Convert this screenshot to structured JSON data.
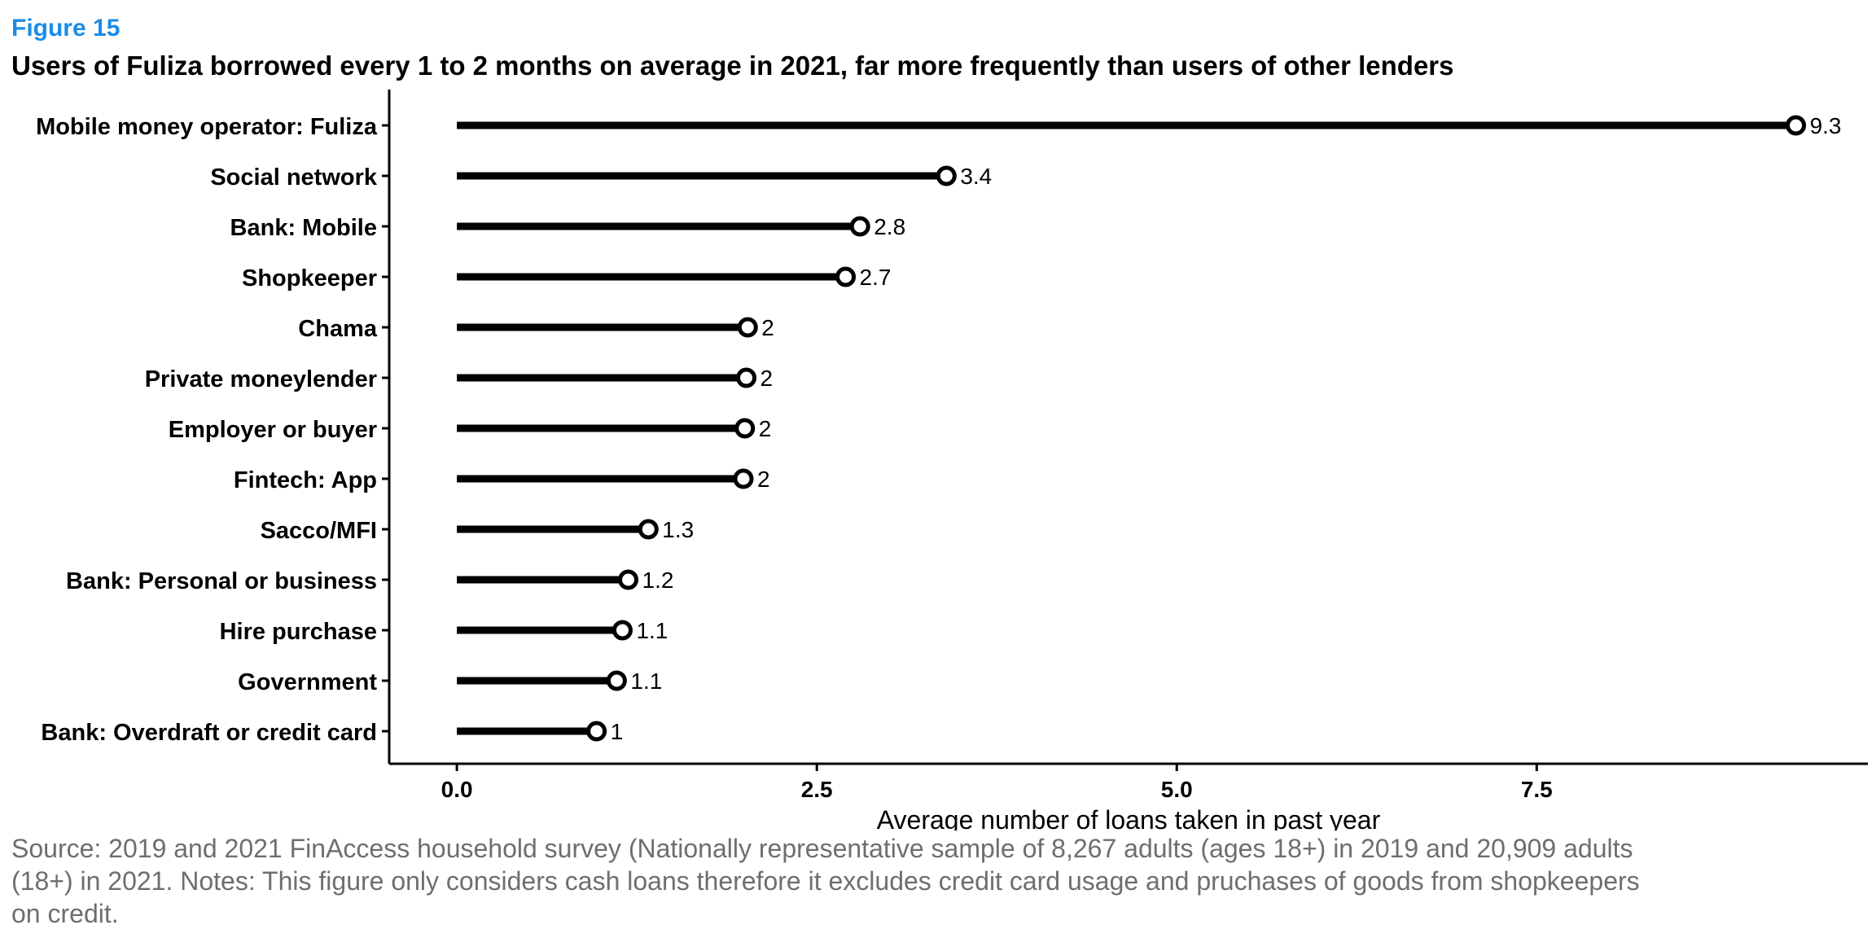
{
  "figure_label": "Figure 15",
  "title": "Users of Fuliza borrowed every 1 to 2 months on average in 2021, far more frequently than users of other lenders",
  "source_note": "Source: 2019 and 2021 FinAccess household survey (Nationally representative sample of 8,267 adults (ages 18+) in 2019 and 20,909 adults (18+) in 2021. Notes: This figure only considers cash loans therefore it excludes credit card usage and pruchases of goods from shopkeepers on credit.",
  "chart_data": {
    "type": "bar",
    "subtype": "lollipop-horizontal",
    "categories": [
      "Mobile money operator: Fuliza",
      "Social network",
      "Bank: Mobile",
      "Shopkeeper",
      "Chama",
      "Private moneylender",
      "Employer or buyer",
      "Fintech: App",
      "Sacco/MFI",
      "Bank: Personal or business",
      "Hire purchase",
      "Government",
      "Bank: Overdraft or credit card"
    ],
    "values": [
      9.3,
      3.4,
      2.8,
      2.7,
      2.02,
      2.01,
      2.0,
      1.99,
      1.33,
      1.19,
      1.15,
      1.11,
      0.97
    ],
    "data_labels": [
      "9.3",
      "3.4",
      "2.8",
      "2.7",
      "2",
      "2",
      "2",
      "2",
      "1.3",
      "1.2",
      "1.1",
      "1.1",
      "1"
    ],
    "xlabel": "Average number of loans taken in past year",
    "ylabel": "",
    "xlim": [
      -0.47,
      9.8
    ],
    "xticks": [
      0,
      2.5,
      5,
      7.5
    ],
    "xtick_labels": [
      "0.0",
      "2.5",
      "5.0",
      "7.5"
    ],
    "grid": false,
    "legend": "none",
    "colors": {
      "stem": "#000000",
      "marker_fill": "#ffffff",
      "marker_stroke": "#000000",
      "axis": "#000000"
    }
  }
}
